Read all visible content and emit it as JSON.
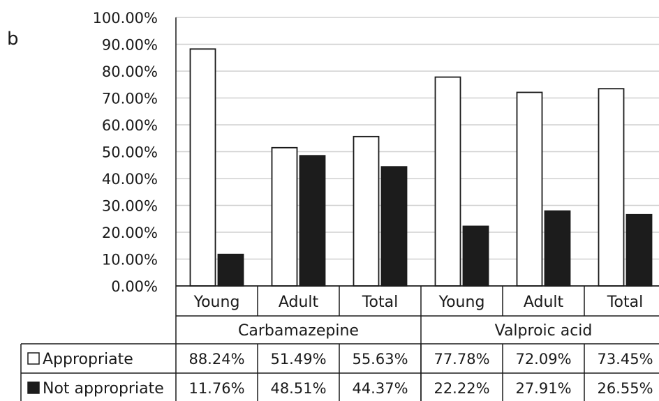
{
  "panel_label": "b",
  "chart_data": {
    "type": "bar",
    "ylim": [
      0,
      100
    ],
    "y_ticks": [
      "0.00%",
      "10.00%",
      "20.00%",
      "30.00%",
      "40.00%",
      "50.00%",
      "60.00%",
      "70.00%",
      "80.00%",
      "90.00%",
      "100.00%"
    ],
    "groups": [
      {
        "name": "Carbamazepine",
        "categories": [
          "Young",
          "Adult",
          "Total"
        ]
      },
      {
        "name": "Valproic acid",
        "categories": [
          "Young",
          "Adult",
          "Total"
        ]
      }
    ],
    "series": [
      {
        "name": "Appropriate",
        "color": "#ffffff",
        "values": [
          88.24,
          51.49,
          55.63,
          77.78,
          72.09,
          73.45
        ],
        "labels": [
          "88.24%",
          "51.49%",
          "55.63%",
          "77.78%",
          "72.09%",
          "73.45%"
        ]
      },
      {
        "name": "Not appropriate",
        "color": "#1c1c1c",
        "values": [
          11.76,
          48.51,
          44.37,
          22.22,
          27.91,
          26.55
        ],
        "labels": [
          "11.76%",
          "48.51%",
          "44.37%",
          "22.22%",
          "27.91%",
          "26.55%"
        ]
      }
    ],
    "grid": true,
    "legend": "data-table-rows"
  }
}
